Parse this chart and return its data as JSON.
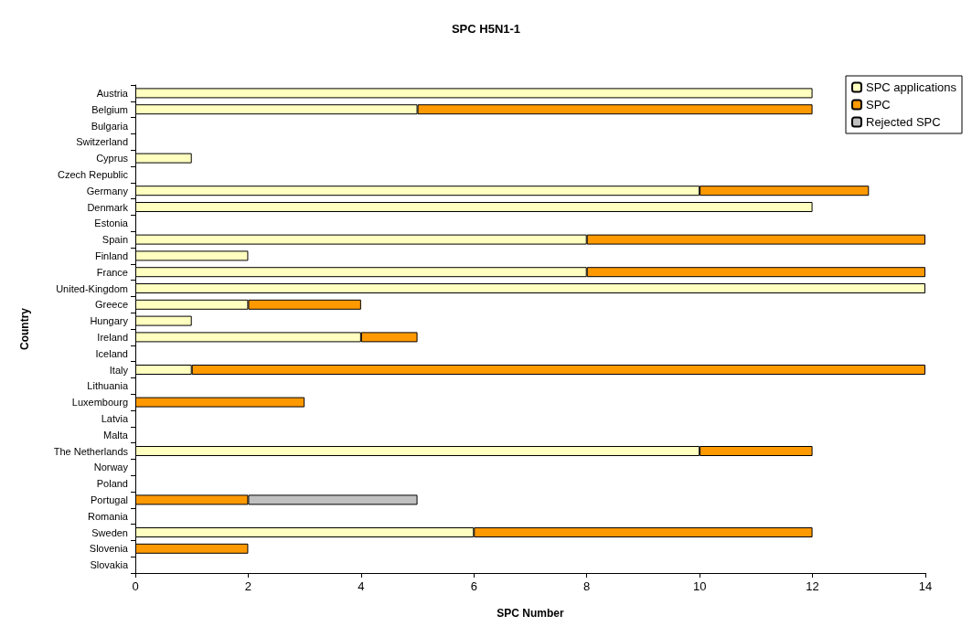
{
  "chart_data": {
    "type": "bar",
    "orientation": "horizontal",
    "stacked": true,
    "title": "SPC H5N1-1",
    "xlabel": "SPC Number",
    "ylabel": "Country",
    "categories": [
      "Austria",
      "Belgium",
      "Bulgaria",
      "Switzerland",
      "Cyprus",
      "Czech Republic",
      "Germany",
      "Denmark",
      "Estonia",
      "Spain",
      "Finland",
      "France",
      "United-Kingdom",
      "Greece",
      "Hungary",
      "Ireland",
      "Iceland",
      "Italy",
      "Lithuania",
      "Luxembourg",
      "Latvia",
      "Malta",
      "The Netherlands",
      "Norway",
      "Poland",
      "Portugal",
      "Romania",
      "Sweden",
      "Slovenia",
      "Slovakia"
    ],
    "series": [
      {
        "name": "SPC applications",
        "color": "#ffffc0",
        "values": [
          12,
          5,
          0,
          0,
          1,
          0,
          10,
          12,
          0,
          8,
          2,
          8,
          14,
          2,
          1,
          4,
          0,
          1,
          0,
          0,
          0,
          0,
          10,
          0,
          0,
          0,
          0,
          6,
          0,
          0
        ]
      },
      {
        "name": "SPC",
        "color": "#ff9900",
        "values": [
          0,
          7,
          0,
          0,
          0,
          0,
          3,
          0,
          0,
          6,
          0,
          6,
          0,
          2,
          0,
          1,
          0,
          13,
          0,
          3,
          0,
          0,
          2,
          0,
          0,
          2,
          0,
          6,
          2,
          0
        ]
      },
      {
        "name": "Rejected SPC",
        "color": "#c0c0c0",
        "values": [
          0,
          0,
          0,
          0,
          0,
          0,
          0,
          0,
          0,
          0,
          0,
          0,
          0,
          0,
          0,
          0,
          0,
          0,
          0,
          0,
          0,
          0,
          0,
          0,
          0,
          3,
          0,
          0,
          0,
          0
        ]
      }
    ],
    "xlim": [
      0,
      14
    ],
    "xticks": [
      0,
      2,
      4,
      6,
      8,
      10,
      12,
      14
    ],
    "grid": false,
    "legend": "top right"
  }
}
